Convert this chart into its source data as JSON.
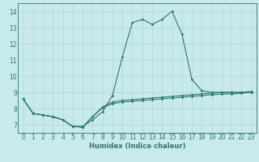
{
  "title": "",
  "xlabel": "Humidex (Indice chaleur)",
  "bg_color": "#c8eaea",
  "line_color": "#2d7878",
  "grid_color": "#b0d4d4",
  "x": [
    0,
    1,
    2,
    3,
    4,
    5,
    6,
    7,
    8,
    9,
    10,
    11,
    12,
    13,
    14,
    15,
    16,
    17,
    18,
    19,
    20,
    21,
    22,
    23
  ],
  "y_main": [
    8.6,
    7.7,
    7.6,
    7.5,
    7.3,
    6.9,
    6.9,
    7.3,
    7.8,
    8.8,
    11.2,
    13.3,
    13.5,
    13.2,
    13.5,
    14.0,
    12.6,
    9.8,
    9.1,
    9.0,
    9.0,
    9.0,
    9.0,
    9.0
  ],
  "y_low1": [
    8.6,
    7.7,
    7.6,
    7.5,
    7.3,
    6.9,
    6.85,
    7.5,
    8.05,
    8.3,
    8.4,
    8.45,
    8.5,
    8.55,
    8.6,
    8.65,
    8.7,
    8.75,
    8.8,
    8.85,
    8.9,
    8.9,
    8.95,
    9.0
  ],
  "y_low2": [
    8.6,
    7.7,
    7.6,
    7.5,
    7.3,
    6.9,
    6.85,
    7.5,
    8.1,
    8.4,
    8.5,
    8.55,
    8.6,
    8.65,
    8.7,
    8.75,
    8.8,
    8.85,
    8.9,
    8.95,
    9.0,
    9.0,
    9.0,
    9.05
  ],
  "xlim": [
    -0.5,
    23.5
  ],
  "ylim": [
    6.5,
    14.5
  ],
  "yticks": [
    7,
    8,
    9,
    10,
    11,
    12,
    13,
    14
  ],
  "xticks": [
    0,
    1,
    2,
    3,
    4,
    5,
    6,
    7,
    8,
    9,
    10,
    11,
    12,
    13,
    14,
    15,
    16,
    17,
    18,
    19,
    20,
    21,
    22,
    23
  ],
  "xlabel_fontsize": 6,
  "tick_fontsize": 5.5,
  "linewidth": 0.8,
  "markersize": 1.8
}
